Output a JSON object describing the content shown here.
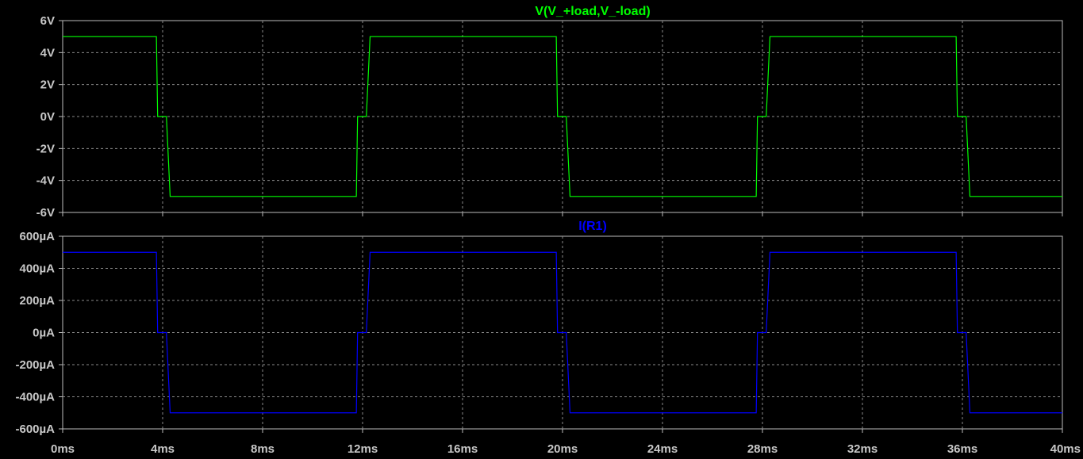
{
  "chart_data": [
    {
      "type": "line",
      "title": "V(V_+load,V_-load)",
      "title_color": "#00ff00",
      "series_color": "#00ff00",
      "xlim": [
        0,
        40
      ],
      "ylim": [
        -6,
        6
      ],
      "x_ticks": [
        0,
        4,
        8,
        12,
        16,
        20,
        24,
        28,
        32,
        36,
        40
      ],
      "y_ticks": [
        -6,
        -4,
        -2,
        0,
        2,
        4,
        6
      ],
      "y_tick_labels": [
        "-6V",
        "-4V",
        "-2V",
        "0V",
        "2V",
        "4V",
        "6V"
      ],
      "grid": true,
      "series": [
        {
          "x": [
            0,
            3.75,
            3.8,
            4.15,
            4.3,
            4.35,
            11.75,
            11.8,
            12.15,
            12.3,
            12.35,
            19.75,
            19.8,
            20.15,
            20.3,
            20.35,
            27.75,
            27.8,
            28.15,
            28.3,
            28.35,
            35.75,
            35.8,
            36.15,
            36.3,
            36.35,
            40
          ],
          "y": [
            5,
            5,
            0,
            0,
            -5,
            -5,
            -5,
            0,
            0,
            5,
            5,
            5,
            0,
            0,
            -5,
            -5,
            -5,
            0,
            0,
            5,
            5,
            5,
            0,
            0,
            -5,
            -5,
            -5
          ]
        }
      ]
    },
    {
      "type": "line",
      "title": "I(R1)",
      "title_color": "#0000ff",
      "series_color": "#0000ff",
      "xlim": [
        0,
        40
      ],
      "ylim": [
        -600,
        600
      ],
      "x_ticks": [
        0,
        4,
        8,
        12,
        16,
        20,
        24,
        28,
        32,
        36,
        40
      ],
      "x_tick_labels": [
        "0ms",
        "4ms",
        "8ms",
        "12ms",
        "16ms",
        "20ms",
        "24ms",
        "28ms",
        "32ms",
        "36ms",
        "40ms"
      ],
      "y_ticks": [
        -600,
        -400,
        -200,
        0,
        200,
        400,
        600
      ],
      "y_tick_labels": [
        "-600µA",
        "-400µA",
        "-200µA",
        "0µA",
        "200µA",
        "400µA",
        "600µA"
      ],
      "grid": true,
      "series": [
        {
          "x": [
            0,
            3.75,
            3.8,
            4.15,
            4.3,
            4.35,
            11.75,
            11.8,
            12.15,
            12.3,
            12.35,
            19.75,
            19.8,
            20.15,
            20.3,
            20.35,
            27.75,
            27.8,
            28.15,
            28.3,
            28.35,
            35.75,
            35.8,
            36.15,
            36.3,
            36.35,
            40
          ],
          "y": [
            500,
            500,
            0,
            0,
            -500,
            -500,
            -500,
            0,
            0,
            500,
            500,
            500,
            0,
            0,
            -500,
            -500,
            -500,
            0,
            0,
            500,
            500,
            500,
            0,
            0,
            -500,
            -500,
            -500
          ]
        }
      ]
    }
  ]
}
